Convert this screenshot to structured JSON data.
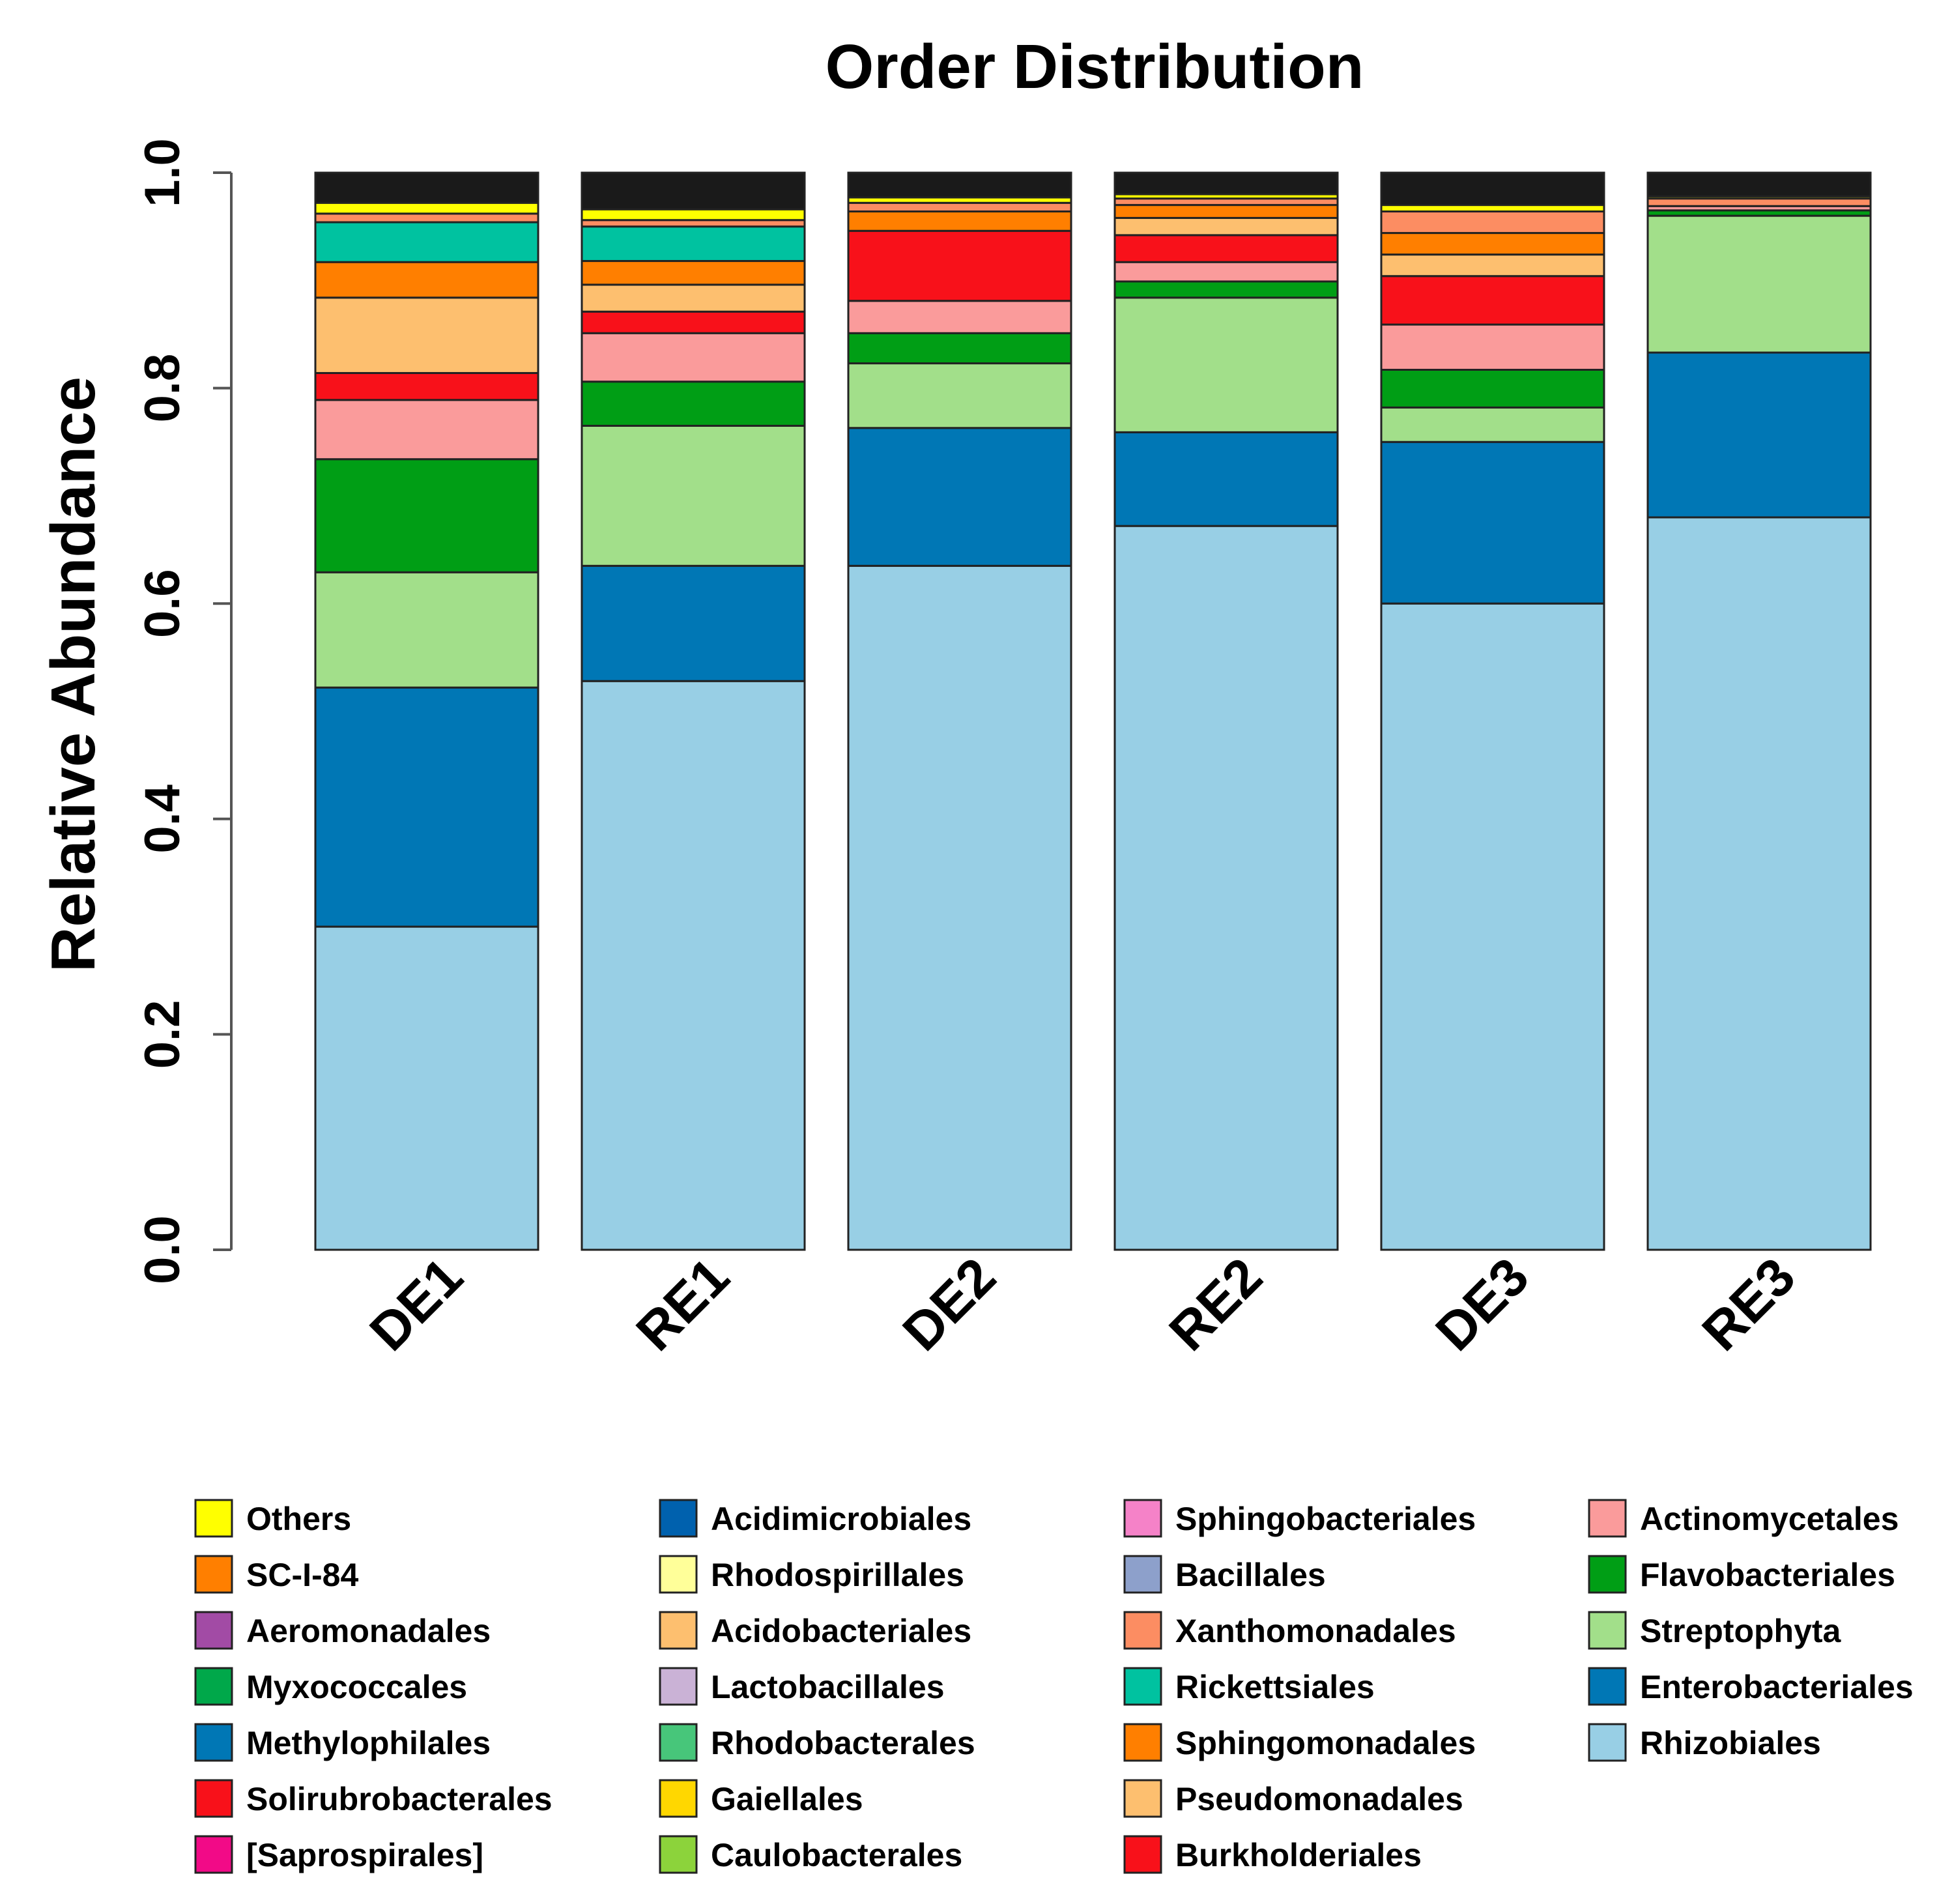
{
  "chart_data": {
    "type": "bar",
    "stacked": true,
    "title": "Order Distribution",
    "ylabel": "Relative Abundance",
    "xlabel": "",
    "ylim": [
      0,
      1
    ],
    "yticks": [
      "0.0",
      "0.2",
      "0.4",
      "0.6",
      "0.8",
      "1.0"
    ],
    "categories": [
      "DE1",
      "RE1",
      "DE2",
      "RE2",
      "DE3",
      "RE3"
    ],
    "series": [
      {
        "name": "Rhizobiales",
        "color": "#98CFE5",
        "values": [
          0.3,
          0.528,
          0.635,
          0.672,
          0.6,
          0.68
        ]
      },
      {
        "name": "Enterobacteriales",
        "color": "#0077B5",
        "values": [
          0.222,
          0.107,
          0.128,
          0.087,
          0.15,
          0.153
        ]
      },
      {
        "name": "Streptophyta",
        "color": "#A2DF8A",
        "values": [
          0.107,
          0.13,
          0.06,
          0.125,
          0.032,
          0.127
        ]
      },
      {
        "name": "Flavobacteriales",
        "color": "#009E15",
        "values": [
          0.105,
          0.041,
          0.028,
          0.015,
          0.035,
          0.005
        ]
      },
      {
        "name": "Actinomycetales",
        "color": "#FA9B9B",
        "values": [
          0.055,
          0.045,
          0.03,
          0.018,
          0.042,
          0.004
        ]
      },
      {
        "name": "Burkholderiales",
        "color": "#F8111A",
        "values": [
          0.025,
          0.02,
          0.065,
          0.025,
          0.045,
          0.0
        ]
      },
      {
        "name": "Pseudomonadales",
        "color": "#FDBF6F",
        "values": [
          0.07,
          0.025,
          0.0,
          0.016,
          0.02,
          0.0
        ]
      },
      {
        "name": "Sphingomonadales",
        "color": "#FF7F00",
        "values": [
          0.033,
          0.022,
          0.018,
          0.012,
          0.02,
          0.0
        ]
      },
      {
        "name": "Rickettsiales",
        "color": "#00C2A0",
        "values": [
          0.037,
          0.032,
          0.0,
          0.0,
          0.0,
          0.0
        ]
      },
      {
        "name": "Xanthomonadales",
        "color": "#FC8D62",
        "values": [
          0.008,
          0.006,
          0.008,
          0.006,
          0.02,
          0.007
        ]
      },
      {
        "name": "Others",
        "color": "#FFFF00",
        "values": [
          0.01,
          0.01,
          0.005,
          0.004,
          0.006,
          0.002
        ]
      }
    ],
    "legend": [
      {
        "name": "Others",
        "color": "#FFFF00"
      },
      {
        "name": "SC-I-84",
        "color": "#FF7F00"
      },
      {
        "name": "Aeromonadales",
        "color": "#A24BA5"
      },
      {
        "name": "Myxococcales",
        "color": "#00A84A"
      },
      {
        "name": "Methylophilales",
        "color": "#0077B5"
      },
      {
        "name": "Solirubrobacterales",
        "color": "#F8111A"
      },
      {
        "name": "[Saprospirales]",
        "color": "#F20A87"
      },
      {
        "name": "Acidimicrobiales",
        "color": "#0061AE"
      },
      {
        "name": "Rhodospirillales",
        "color": "#FFFF99"
      },
      {
        "name": "Acidobacteriales",
        "color": "#FDBF6F"
      },
      {
        "name": "Lactobacillales",
        "color": "#CAB2D6"
      },
      {
        "name": "Rhodobacterales",
        "color": "#47C67A"
      },
      {
        "name": "Gaiellales",
        "color": "#FFD700"
      },
      {
        "name": "Caulobacterales",
        "color": "#8CD33B"
      },
      {
        "name": "Sphingobacteriales",
        "color": "#F582C8"
      },
      {
        "name": "Bacillales",
        "color": "#8DA0CB"
      },
      {
        "name": "Xanthomonadales",
        "color": "#FC8D62"
      },
      {
        "name": "Rickettsiales",
        "color": "#00C2A0"
      },
      {
        "name": "Sphingomonadales",
        "color": "#FF7F00"
      },
      {
        "name": "Pseudomonadales",
        "color": "#FDBF6F"
      },
      {
        "name": "Burkholderiales",
        "color": "#F8111A"
      },
      {
        "name": "Actinomycetales",
        "color": "#FA9B9B"
      },
      {
        "name": "Flavobacteriales",
        "color": "#009E15"
      },
      {
        "name": "Streptophyta",
        "color": "#A2DF8A"
      },
      {
        "name": "Enterobacteriales",
        "color": "#0077B5"
      },
      {
        "name": "Rhizobiales",
        "color": "#98CFE5"
      }
    ],
    "legend_placement": "bottom",
    "grid": false
  }
}
